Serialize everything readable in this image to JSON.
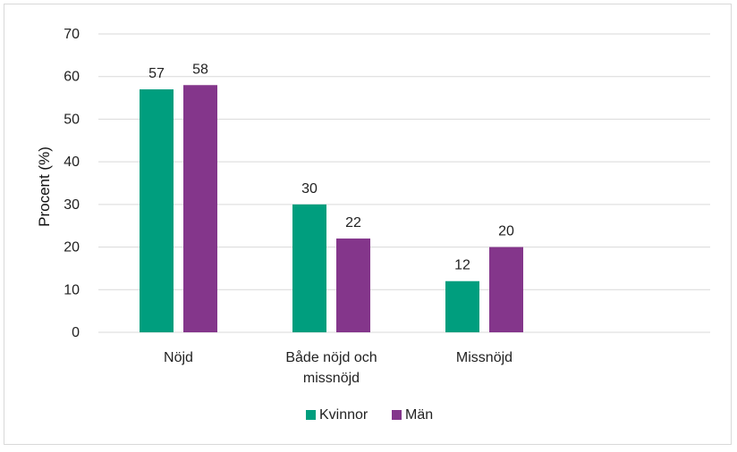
{
  "chart_data": {
    "type": "bar",
    "title": "",
    "xlabel": "",
    "ylabel": "Procent (%)",
    "ylim": [
      0,
      70
    ],
    "yticks": [
      0,
      10,
      20,
      30,
      40,
      50,
      60,
      70
    ],
    "grid": true,
    "legend_position": "bottom-center",
    "categories": [
      [
        "Nöjd"
      ],
      [
        "Både nöjd och",
        "missnöjd"
      ],
      [
        "Missnöjd"
      ]
    ],
    "series": [
      {
        "name": "Kvinnor",
        "color": "#009e7e",
        "values": [
          57,
          30,
          12
        ]
      },
      {
        "name": "Män",
        "color": "#84368b",
        "values": [
          58,
          22,
          20
        ]
      }
    ]
  }
}
